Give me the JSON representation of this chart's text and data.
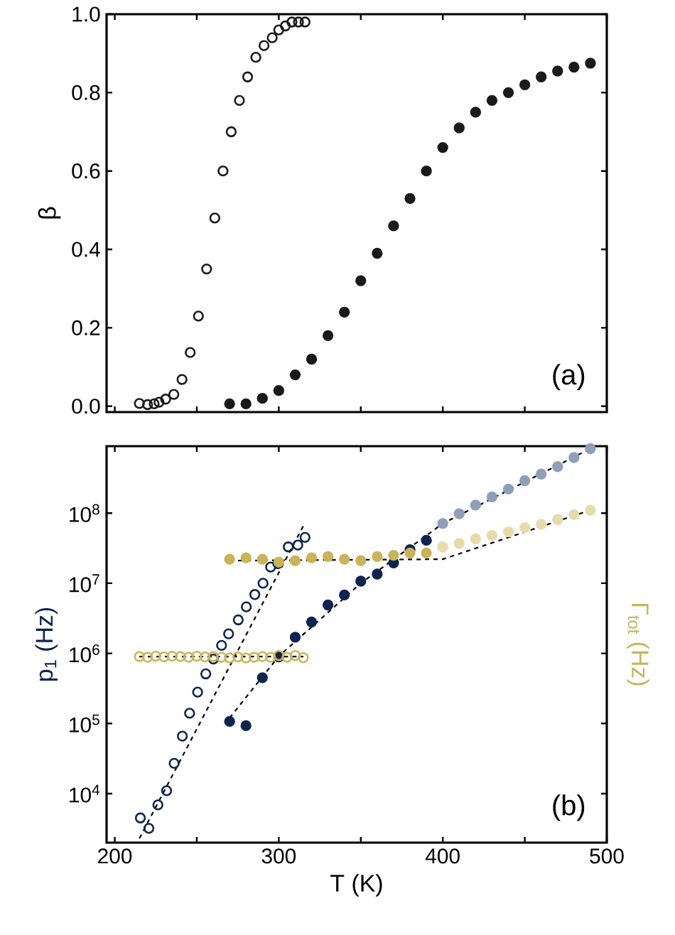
{
  "chart_data": [
    {
      "type": "scatter",
      "ylabel": "β",
      "xlim": [
        195,
        500
      ],
      "ylim": [
        -0.015,
        1.0
      ],
      "tick_labels": "y",
      "marker": "circle",
      "grid": false,
      "legend": false,
      "xticks": [
        {
          "value": 200,
          "label": null
        },
        {
          "value": 250,
          "label": null
        },
        {
          "value": 300,
          "label": null
        },
        {
          "value": 350,
          "label": null
        },
        {
          "value": 400,
          "label": null
        },
        {
          "value": 450,
          "label": null
        },
        {
          "value": 500,
          "label": null
        }
      ],
      "yticks": [
        {
          "value": 0,
          "label": "0.0"
        },
        {
          "value": 0.2,
          "label": "0.2"
        },
        {
          "value": 0.4,
          "label": "0.4"
        },
        {
          "value": 0.6,
          "label": "0.6"
        },
        {
          "value": 0.8,
          "label": "0.8"
        },
        {
          "value": 1.0,
          "label": "1.0"
        }
      ],
      "annotations": [
        "(a)"
      ],
      "series": [
        {
          "color": "#1a1a1a",
          "x": [
            215,
            220,
            224,
            227,
            231,
            236,
            241,
            246,
            251,
            256,
            261,
            266,
            271,
            276,
            281,
            286,
            291,
            296,
            300,
            304,
            308,
            312,
            316
          ],
          "values": [
            0.007,
            0.004,
            0.006,
            0.01,
            0.018,
            0.03,
            0.068,
            0.137,
            0.23,
            0.35,
            0.48,
            0.6,
            0.7,
            0.78,
            0.84,
            0.89,
            0.92,
            0.94,
            0.96,
            0.97,
            0.98,
            0.98,
            0.98
          ]
        },
        {
          "color": "#1a1a1a",
          "x": [
            270,
            280,
            290,
            300,
            310,
            320,
            330,
            340,
            350,
            360,
            370,
            380,
            390,
            400,
            410,
            420,
            430,
            440,
            450,
            460,
            470,
            480,
            490
          ],
          "values": [
            0.006,
            0.006,
            0.02,
            0.04,
            0.08,
            0.12,
            0.18,
            0.24,
            0.32,
            0.39,
            0.46,
            0.53,
            0.6,
            0.66,
            0.71,
            0.75,
            0.78,
            0.8,
            0.82,
            0.84,
            0.855,
            0.865,
            0.875
          ]
        }
      ]
    },
    {
      "type": "scatter",
      "xlabel": "T (K)",
      "ylabel": "p$_{1}$ (Hz)",
      "y2label": "Γ$_{tot}$ (Hz)",
      "log": "y",
      "xlim": [
        195,
        500
      ],
      "ylim": [
        2000,
        900000000
      ],
      "marker": "circle",
      "grid": false,
      "legend": false,
      "xticks": [
        200,
        {
          "value": 250,
          "label": null
        },
        300,
        {
          "value": 350,
          "label": null
        },
        400,
        {
          "value": 450,
          "label": null
        },
        500
      ],
      "yticks": [
        {
          "value": 10000,
          "label": "10$^{4}$"
        },
        {
          "value": 100000,
          "label": "10$^{5}$"
        },
        {
          "value": 1000000,
          "label": "10$^{6}$"
        },
        {
          "value": 10000000,
          "label": "10$^{7}$"
        },
        {
          "value": 100000000,
          "label": "10$^{8}$"
        }
      ],
      "annotations": [
        "(b)"
      ],
      "series": [
        {
          "color": "#0d2550",
          "x": [
            215.6,
            220.8,
            226.3,
            231.6,
            236.2,
            241.2,
            245.6,
            250.5,
            255.5,
            260.1,
            265.1,
            269.4,
            275.3,
            280.2,
            285.4,
            290.4,
            295,
            299.4,
            305.8,
            311.6,
            316
          ],
          "values": [
            4500,
            3200,
            6900,
            11000,
            27000,
            66000,
            140000,
            280000,
            510000,
            830000,
            1300000,
            1900000,
            3000000,
            4600000,
            6900000,
            10000000,
            17000000,
            19000000,
            33000000,
            35000000,
            45000000
          ]
        },
        {
          "color": "#0d2550",
          "colors": [
            "#0d2550",
            "#0d2550",
            "#0d2550",
            "#0d2550",
            "#0d2550",
            "#0d2550",
            "#0d2550",
            "#0d2550",
            "#0d2550",
            "#0d2550",
            "#0d2550",
            "#0d2550",
            "#0d2550",
            "#8e9fba",
            "#8e9fba",
            "#8e9fba",
            "#8e9fba",
            "#8e9fba",
            "#8e9fba",
            "#8e9fba",
            "#8e9fba",
            "#8e9fba",
            "#8e9fba"
          ],
          "x": [
            270,
            280,
            290,
            300,
            310,
            320,
            330,
            340,
            350,
            360,
            370,
            380,
            390,
            400,
            410,
            420,
            430,
            440,
            450,
            460,
            470,
            480,
            490
          ],
          "values": [
            107000,
            93000,
            450000,
            890000,
            1700000,
            2800000,
            4900000,
            6800000,
            10700000,
            13500000,
            19500000,
            30000000,
            41000000,
            71000000,
            98000000,
            130000000,
            170000000,
            220000000,
            290000000,
            360000000,
            460000000,
            620000000,
            830000000
          ]
        },
        {
          "color": "#c9b458",
          "x": [
            215,
            220,
            225,
            230,
            235,
            240,
            245,
            250,
            255,
            260,
            265,
            270,
            275,
            280,
            285,
            290,
            295,
            300,
            305,
            310,
            315
          ],
          "values": [
            900000,
            880000,
            910000,
            890000,
            910000,
            900000,
            880000,
            910000,
            890000,
            900000,
            880000,
            860000,
            890000,
            860000,
            880000,
            900000,
            880000,
            930000,
            880000,
            930000,
            870000
          ]
        },
        {
          "color": "#c9b458",
          "colors": [
            "#c9b458",
            "#c9b458",
            "#c9b458",
            "#c9b458",
            "#c9b458",
            "#c9b458",
            "#c9b458",
            "#c9b458",
            "#c9b458",
            "#c9b458",
            "#c9b458",
            "#c9b458",
            "#c9b458",
            "#e6dcaa",
            "#e6dcaa",
            "#e6dcaa",
            "#e6dcaa",
            "#e6dcaa",
            "#e6dcaa",
            "#e6dcaa",
            "#e6dcaa",
            "#e6dcaa",
            "#e6dcaa"
          ],
          "x": [
            270,
            280,
            290,
            300,
            310,
            320,
            330,
            340,
            350,
            360,
            370,
            380,
            390,
            400,
            410,
            420,
            430,
            440,
            450,
            460,
            470,
            480,
            490
          ],
          "values": [
            22000000,
            23000000,
            22000000,
            20000000,
            21000000,
            23000000,
            24000000,
            22000000,
            21000000,
            24000000,
            25000000,
            27000000,
            27000000,
            33000000,
            37000000,
            43000000,
            48000000,
            54000000,
            62000000,
            69000000,
            81000000,
            95000000,
            110000000
          ]
        },
        {
          "type": "line",
          "color": "#000000",
          "marker": "none",
          "line_style": "dashed",
          "x": [
            215,
            315
          ],
          "values": [
            2300,
            66000000
          ]
        },
        {
          "type": "line",
          "color": "#000000",
          "marker": "none",
          "line_style": "dashed",
          "x": [
            270,
            300,
            350,
            400,
            490
          ],
          "values": [
            120000,
            910000,
            10000000,
            71000000,
            830000000
          ]
        },
        {
          "type": "line",
          "color": "#000000",
          "marker": "none",
          "line_style": "dashed",
          "x": [
            215,
            315
          ],
          "values": [
            900000,
            900000
          ]
        },
        {
          "type": "line",
          "color": "#000000",
          "marker": "none",
          "line_style": "dashed",
          "x": [
            270,
            400,
            490
          ],
          "values": [
            21000000,
            22000000,
            110000000
          ]
        }
      ]
    }
  ]
}
